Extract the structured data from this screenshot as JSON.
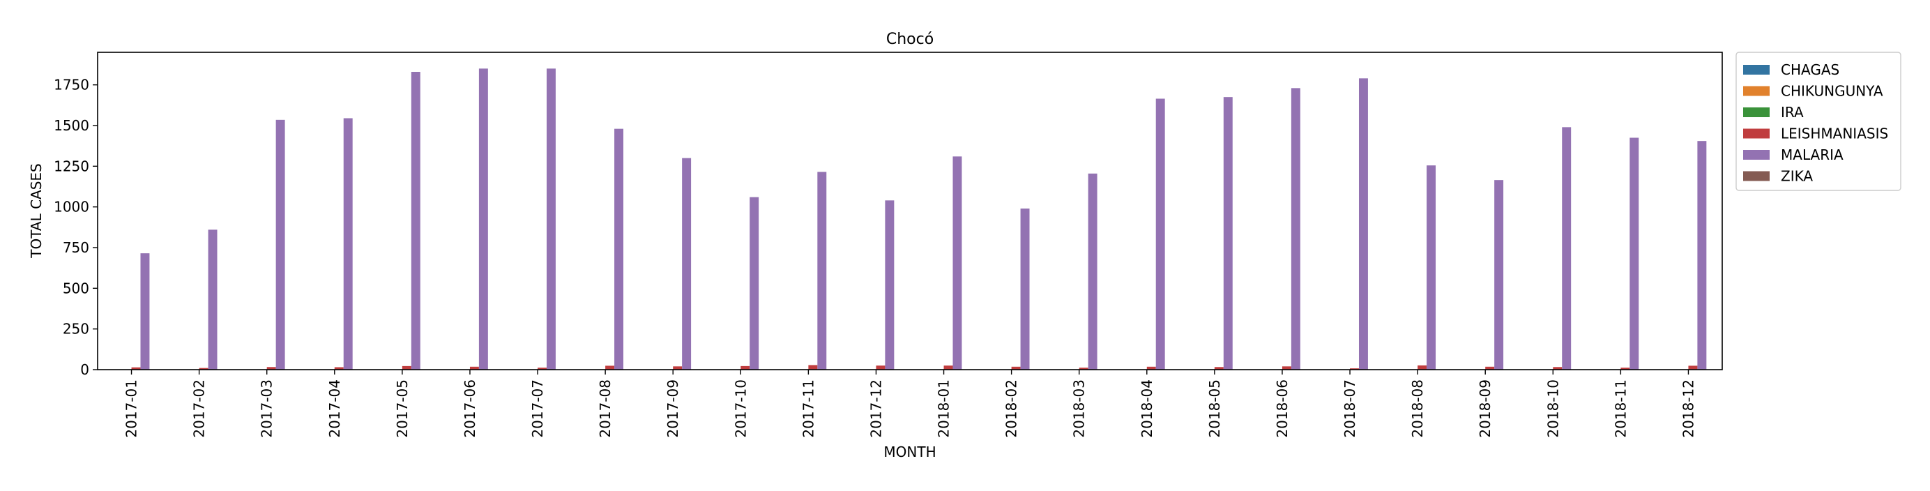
{
  "chart_data": {
    "type": "bar",
    "title": "Chocó",
    "xlabel": "MONTH",
    "ylabel": "TOTAL CASES",
    "ylim": [
      0,
      1950
    ],
    "yticks": [
      0,
      250,
      500,
      750,
      1000,
      1250,
      1500,
      1750
    ],
    "grid": false,
    "legend_position": "outside-top-right",
    "categories": [
      "2017-01",
      "2017-02",
      "2017-03",
      "2017-04",
      "2017-05",
      "2017-06",
      "2017-07",
      "2017-08",
      "2017-09",
      "2017-10",
      "2017-11",
      "2017-12",
      "2018-01",
      "2018-02",
      "2018-03",
      "2018-04",
      "2018-05",
      "2018-06",
      "2018-07",
      "2018-08",
      "2018-09",
      "2018-10",
      "2018-11",
      "2018-12"
    ],
    "series": [
      {
        "name": "CHAGAS",
        "color": "#3274a1",
        "values": [
          0,
          0,
          0,
          0,
          0,
          0,
          0,
          0,
          0,
          0,
          0,
          0,
          0,
          0,
          0,
          0,
          0,
          0,
          0,
          0,
          0,
          0,
          0,
          0
        ]
      },
      {
        "name": "CHIKUNGUNYA",
        "color": "#e1812c",
        "values": [
          1,
          0,
          1,
          0,
          1,
          0,
          0,
          1,
          0,
          0,
          0,
          0,
          0,
          1,
          0,
          0,
          0,
          0,
          0,
          0,
          0,
          0,
          0,
          0
        ]
      },
      {
        "name": "IRA",
        "color": "#3a923a",
        "values": [
          0,
          0,
          0,
          0,
          0,
          0,
          0,
          0,
          0,
          0,
          0,
          0,
          0,
          0,
          0,
          0,
          0,
          0,
          0,
          0,
          0,
          0,
          0,
          0
        ]
      },
      {
        "name": "LEISHMANIASIS",
        "color": "#c03d3e",
        "values": [
          14,
          10,
          16,
          15,
          22,
          18,
          12,
          24,
          20,
          22,
          28,
          25,
          25,
          18,
          12,
          18,
          16,
          20,
          8,
          26,
          18,
          16,
          12,
          24
        ]
      },
      {
        "name": "MALARIA",
        "color": "#9372b2",
        "values": [
          715,
          860,
          1535,
          1545,
          1830,
          1850,
          1850,
          1480,
          1300,
          1060,
          1215,
          1040,
          1310,
          990,
          1205,
          1665,
          1675,
          1730,
          1790,
          1255,
          1165,
          1490,
          1425,
          1405
        ]
      },
      {
        "name": "ZIKA",
        "color": "#845b53",
        "values": [
          0,
          0,
          0,
          0,
          0,
          0,
          0,
          0,
          0,
          0,
          0,
          0,
          0,
          0,
          0,
          0,
          0,
          0,
          0,
          0,
          0,
          0,
          0,
          0
        ]
      }
    ]
  }
}
